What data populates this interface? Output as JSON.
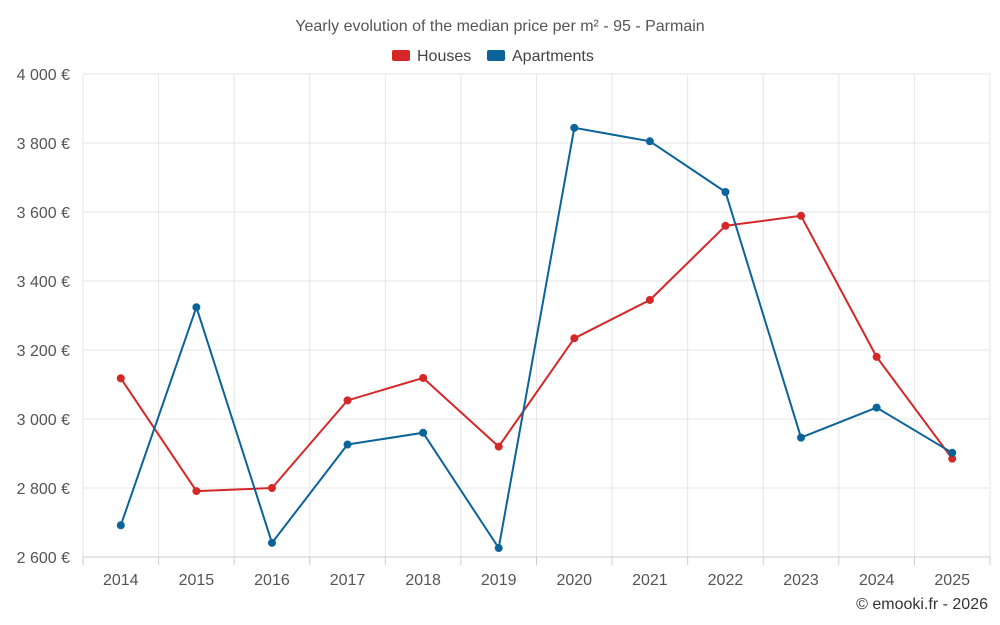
{
  "chart_data": {
    "type": "line",
    "title": "Yearly evolution of the median price per m² - 95 - Parmain",
    "categories": [
      "2014",
      "2015",
      "2016",
      "2017",
      "2018",
      "2019",
      "2020",
      "2021",
      "2022",
      "2023",
      "2024",
      "2025"
    ],
    "series": [
      {
        "name": "Houses",
        "color": "#d62728",
        "values": [
          3118,
          2791,
          2800,
          3054,
          3119,
          2920,
          3234,
          3345,
          3560,
          3589,
          3180,
          2885
        ]
      },
      {
        "name": "Apartments",
        "color": "#0a6399",
        "values": [
          2692,
          3324,
          2641,
          2926,
          2960,
          2626,
          3844,
          3805,
          3658,
          2946,
          3033,
          2902
        ]
      }
    ],
    "ylim": [
      2600,
      4000
    ],
    "yticks": [
      2600,
      2800,
      3000,
      3200,
      3400,
      3600,
      3800,
      4000
    ],
    "ytick_labels": [
      "2 600 €",
      "2 800 €",
      "3 000 €",
      "3 200 €",
      "3 400 €",
      "3 600 €",
      "3 800 €",
      "4 000 €"
    ],
    "xlabel": "",
    "ylabel": "",
    "legend_position": "top-center",
    "grid": true
  },
  "credit": "© emooki.fr - 2026"
}
